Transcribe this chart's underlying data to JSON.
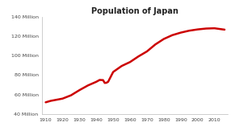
{
  "title": "Population of Japan",
  "background_color": "#ffffff",
  "plot_bg_color": "#ffffff",
  "line_color": "#cc0000",
  "line_width": 1.8,
  "years": [
    1910,
    1913,
    1920,
    1925,
    1930,
    1935,
    1940,
    1942,
    1944,
    1945,
    1946,
    1947,
    1950,
    1955,
    1960,
    1965,
    1970,
    1975,
    1980,
    1985,
    1990,
    1995,
    2000,
    2005,
    2010,
    2015,
    2016
  ],
  "population": [
    52,
    53.5,
    55.8,
    59.2,
    64.5,
    69.3,
    73.1,
    75.0,
    74.8,
    71.9,
    72.1,
    73.1,
    83.2,
    89.3,
    93.4,
    99.2,
    104.3,
    111.5,
    117.1,
    121.0,
    123.6,
    125.6,
    126.9,
    127.8,
    128.1,
    126.9,
    126.7
  ],
  "xlim": [
    1908,
    2018
  ],
  "ylim": [
    40,
    140
  ],
  "yticks": [
    40,
    60,
    80,
    100,
    120,
    140
  ],
  "ytick_labels": [
    "40 Million",
    "60 Million",
    "80 Million",
    "100 Million",
    "120 Million",
    "140 Million"
  ],
  "xticks": [
    1910,
    1920,
    1930,
    1940,
    1950,
    1960,
    1970,
    1980,
    1990,
    2000,
    2010
  ],
  "title_fontsize": 7,
  "tick_fontsize": 4.5
}
